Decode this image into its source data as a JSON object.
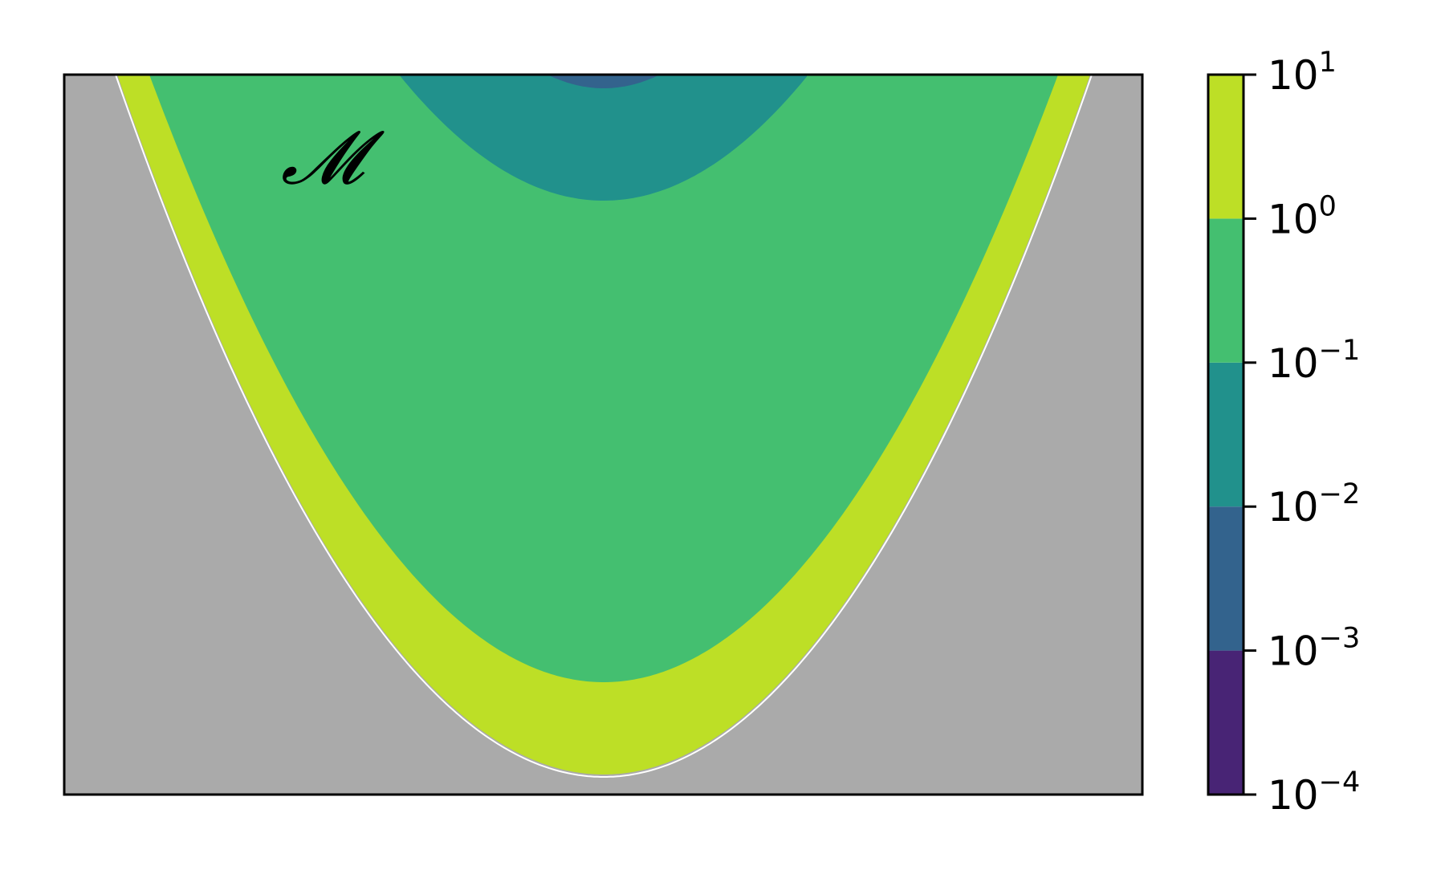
{
  "chart_data": {
    "type": "heatmap",
    "title": "",
    "xlabel": "",
    "ylabel": "",
    "annotations": [
      {
        "text": "𝓜"
      }
    ],
    "colorbar": {
      "scale": "log",
      "range": [
        0.0001,
        10
      ],
      "levels": [
        0.0001,
        0.001,
        0.01,
        0.1,
        1,
        10
      ],
      "tick_labels": [
        {
          "base": "10",
          "exp": "−4"
        },
        {
          "base": "10",
          "exp": "−3"
        },
        {
          "base": "10",
          "exp": "−2"
        },
        {
          "base": "10",
          "exp": "−1"
        },
        {
          "base": "10",
          "exp": "0"
        },
        {
          "base": "10",
          "exp": "1"
        }
      ],
      "colors": [
        "#482475",
        "#33638d",
        "#21918c",
        "#44bf70",
        "#bddf26"
      ]
    },
    "axes": {
      "x_ticks": false,
      "y_ticks": false,
      "background_color": "#aaaaaa"
    },
    "contour_regions_outer_to_inner": [
      {
        "band": "1e0 – 1e1",
        "color": "#bddf26"
      },
      {
        "band": "1e-1 – 1e0",
        "color": "#44bf70"
      },
      {
        "band": "1e-2 – 1e-1",
        "color": "#21918c"
      },
      {
        "band": "1e-3 – 1e-2",
        "color": "#33638d"
      }
    ]
  }
}
